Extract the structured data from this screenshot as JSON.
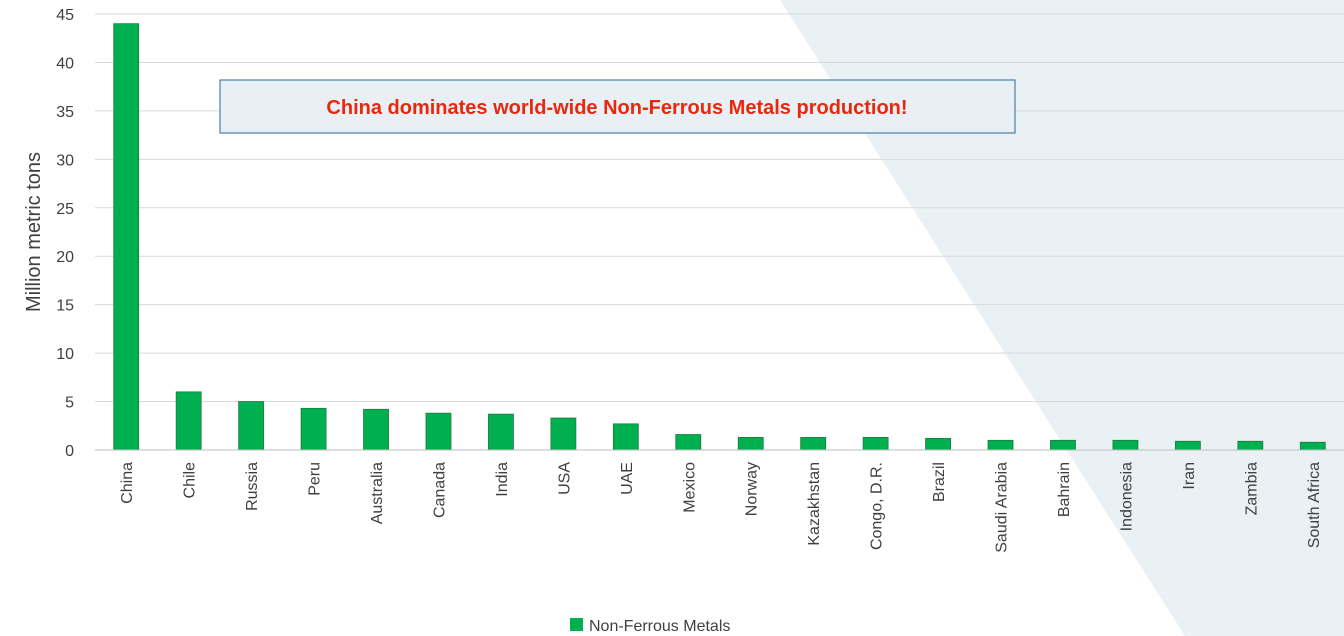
{
  "chart_data": {
    "type": "bar",
    "title": "",
    "xlabel": "",
    "ylabel": "Million metric tons",
    "ylim": [
      0,
      45
    ],
    "yticks": [
      0,
      5,
      10,
      15,
      20,
      25,
      30,
      35,
      40,
      45
    ],
    "grid": true,
    "legend_position": "bottom-center",
    "categories": [
      "China",
      "Chile",
      "Russia",
      "Peru",
      "Australia",
      "Canada",
      "India",
      "USA",
      "UAE",
      "Mexico",
      "Norway",
      "Kazakhstan",
      "Congo, D.R.",
      "Brazil",
      "Saudi Arabia",
      "Bahrain",
      "Indonesia",
      "Iran",
      "Zambia",
      "South Africa"
    ],
    "series": [
      {
        "name": "Non-Ferrous Metals",
        "color": "#00b050",
        "values": [
          44,
          6.0,
          5.0,
          4.3,
          4.2,
          3.8,
          3.7,
          3.3,
          2.7,
          1.6,
          1.3,
          1.3,
          1.3,
          1.2,
          1.0,
          1.0,
          1.0,
          0.9,
          0.9,
          0.8
        ]
      }
    ],
    "annotations": [
      {
        "text": "China dominates world-wide Non-Ferrous Metals production!",
        "color": "#e8280d",
        "background": "#e8f0f6",
        "border": "#4a7ea8"
      }
    ]
  },
  "colors": {
    "grid": "#d9d9d9",
    "axis": "#bfbfbf",
    "text": "#404040",
    "background_shape": "#eaf1f5"
  }
}
